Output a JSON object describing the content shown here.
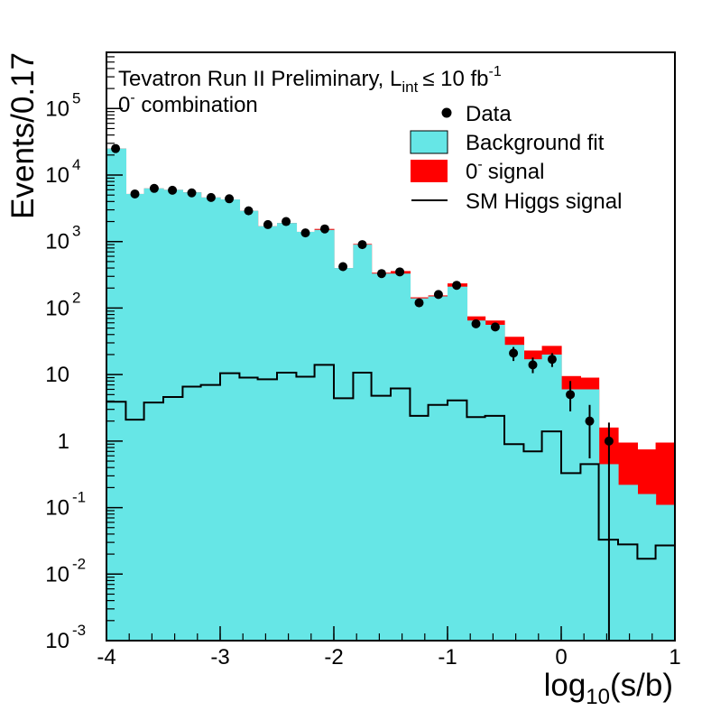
{
  "chart_data": {
    "type": "bar",
    "title": "Tevatron Run II Preliminary, L",
    "title_sub": "int",
    "title_rest": "≤ 10 fb",
    "title_sup": "-1",
    "subtitle_main": "0",
    "subtitle_sup": "-",
    "subtitle_rest": " combination",
    "ylabel": "Events/0.17",
    "xlabel_main": "log",
    "xlabel_sub": "10",
    "xlabel_rest": "(s/b)",
    "xlim": [
      -4,
      1
    ],
    "ylim": [
      0.001,
      700000
    ],
    "log_y": true,
    "x_ticks": [
      "-4",
      "-3",
      "-2",
      "-1",
      "0",
      "1"
    ],
    "y_ticks": [
      {
        "main": "10",
        "sup": "-3"
      },
      {
        "main": "10",
        "sup": "-2"
      },
      {
        "main": "10",
        "sup": "-1"
      },
      {
        "main": "1",
        "sup": ""
      },
      {
        "main": "10",
        "sup": ""
      },
      {
        "main": "10",
        "sup": "2"
      },
      {
        "main": "10",
        "sup": "3"
      },
      {
        "main": "10",
        "sup": "4"
      },
      {
        "main": "10",
        "sup": "5"
      }
    ],
    "legend_position": "top-right",
    "legend": [
      {
        "label": "Data",
        "kind": "marker"
      },
      {
        "label": "Background fit",
        "kind": "fill",
        "color": "#66e6e6"
      },
      {
        "label": "signal",
        "prefix": "0",
        "sup": "-",
        "kind": "fill",
        "color": "#ff0000"
      },
      {
        "label": "SM Higgs signal",
        "kind": "line"
      }
    ],
    "bin_edges": [
      -4.0,
      -3.83,
      -3.67,
      -3.5,
      -3.33,
      -3.17,
      -3.0,
      -2.83,
      -2.67,
      -2.5,
      -2.33,
      -2.17,
      -2.0,
      -1.83,
      -1.67,
      -1.5,
      -1.33,
      -1.17,
      -1.0,
      -0.83,
      -0.67,
      -0.5,
      -0.33,
      -0.17,
      0.0,
      0.17,
      0.33,
      0.5,
      0.67,
      0.83,
      1.0
    ],
    "background": [
      25000,
      5200,
      6300,
      6000,
      5500,
      4600,
      4300,
      2900,
      1700,
      1900,
      1400,
      1500,
      400,
      900,
      330,
      330,
      140,
      150,
      210,
      65,
      56,
      28,
      17,
      20,
      6,
      6,
      0.45,
      0.22,
      0.16,
      0.11
    ],
    "signal_0minus": [
      25000,
      5200,
      6300,
      6000,
      5500,
      4600,
      4300,
      2900,
      1700,
      1900,
      1400,
      1550,
      400,
      920,
      340,
      360,
      145,
      155,
      235,
      75,
      65,
      37,
      23,
      27,
      9.5,
      9,
      1.6,
      0.95,
      0.75,
      0.95
    ],
    "sm_higgs": [
      3.9,
      2.1,
      3.8,
      4.6,
      6.6,
      7.0,
      10.5,
      9.0,
      8.5,
      10.7,
      9.3,
      14.0,
      4.4,
      10.7,
      4.8,
      6.2,
      2.4,
      3.5,
      4.1,
      2.3,
      2.4,
      0.9,
      0.7,
      1.4,
      0.33,
      0.45,
      0.033,
      0.028,
      0.017,
      0.027
    ],
    "data": [
      {
        "x": -3.92,
        "y": 25000
      },
      {
        "x": -3.75,
        "y": 5200
      },
      {
        "x": -3.58,
        "y": 6300
      },
      {
        "x": -3.42,
        "y": 5900
      },
      {
        "x": -3.25,
        "y": 5400
      },
      {
        "x": -3.08,
        "y": 4600
      },
      {
        "x": -2.92,
        "y": 4400
      },
      {
        "x": -2.75,
        "y": 2900
      },
      {
        "x": -2.58,
        "y": 1800
      },
      {
        "x": -2.42,
        "y": 2000
      },
      {
        "x": -2.25,
        "y": 1350
      },
      {
        "x": -2.08,
        "y": 1550
      },
      {
        "x": -1.92,
        "y": 420
      },
      {
        "x": -1.75,
        "y": 900
      },
      {
        "x": -1.58,
        "y": 330
      },
      {
        "x": -1.42,
        "y": 350
      },
      {
        "x": -1.25,
        "y": 120
      },
      {
        "x": -1.08,
        "y": 160
      },
      {
        "x": -0.92,
        "y": 220
      },
      {
        "x": -0.75,
        "y": 58
      },
      {
        "x": -0.58,
        "y": 52
      },
      {
        "x": -0.42,
        "y": 21,
        "err": [
          16,
          26
        ]
      },
      {
        "x": -0.25,
        "y": 14,
        "err": [
          10.5,
          18
        ]
      },
      {
        "x": -0.08,
        "y": 17,
        "err": [
          13,
          21
        ]
      },
      {
        "x": 0.08,
        "y": 5,
        "err": [
          2.8,
          8
        ]
      },
      {
        "x": 0.25,
        "y": 2,
        "err": [
          0.55,
          3.5
        ]
      },
      {
        "x": 0.42,
        "y": 1,
        "err": [
          0.001,
          1.9
        ]
      }
    ]
  }
}
